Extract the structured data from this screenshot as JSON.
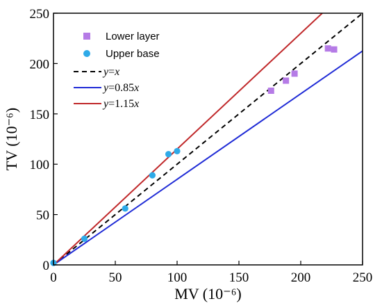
{
  "chart_data": {
    "type": "scatter",
    "title": "",
    "xlabel": "MV (10⁻⁶)",
    "ylabel": "TV (10⁻⁶)",
    "xlim": [
      0,
      250
    ],
    "ylim": [
      0,
      250
    ],
    "x_ticks": [
      "0",
      "50",
      "100",
      "150",
      "200",
      "250"
    ],
    "y_ticks": [
      "0",
      "50",
      "100",
      "150",
      "200",
      "250"
    ],
    "grid": false,
    "legend_position": "top-left",
    "series": [
      {
        "name": "Lower layer",
        "kind": "points",
        "marker": "square",
        "color": "#b57be6",
        "points": [
          [
            176,
            173
          ],
          [
            188,
            183
          ],
          [
            195,
            190
          ],
          [
            222,
            215
          ],
          [
            227,
            214
          ]
        ]
      },
      {
        "name": "Upper base",
        "kind": "points",
        "marker": "circle",
        "color": "#2eaae8",
        "points": [
          [
            0,
            2
          ],
          [
            25,
            26
          ],
          [
            58,
            56
          ],
          [
            80,
            89
          ],
          [
            93,
            110
          ],
          [
            100,
            113
          ]
        ]
      },
      {
        "name": "y=x",
        "label_prefix": "y",
        "label_suffix": "=x",
        "kind": "line",
        "slope": 1.0,
        "color": "#000000",
        "dash": true
      },
      {
        "name": "y=0.85x",
        "label_prefix": "y",
        "label_suffix": "=0.85x",
        "kind": "line",
        "slope": 0.85,
        "color": "#1f2bd6",
        "dash": false
      },
      {
        "name": "y=1.15x",
        "label_prefix": "y",
        "label_suffix": "=1.15x",
        "kind": "line",
        "slope": 1.15,
        "color": "#c0282a",
        "dash": false
      }
    ]
  }
}
